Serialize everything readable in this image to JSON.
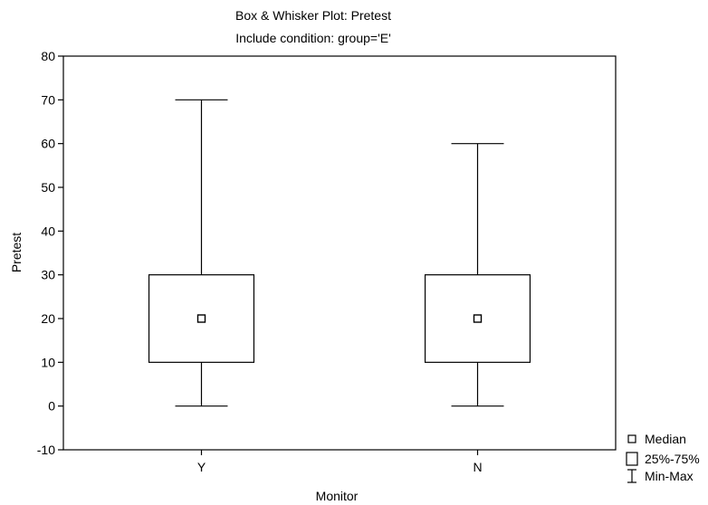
{
  "chart_data": {
    "type": "box",
    "title": "Box & Whisker Plot:  Pretest",
    "subtitle": "Include condition: group='E'",
    "xlabel": "Monitor",
    "ylabel": "Pretest",
    "ylim": [
      -10,
      80
    ],
    "y_ticks": [
      "80",
      "70",
      "60",
      "50",
      "40",
      "30",
      "20",
      "10",
      "0",
      "-10"
    ],
    "categories": [
      "Y",
      "N"
    ],
    "boxes": [
      {
        "category": "Y",
        "min": 0,
        "q1": 10,
        "median": 20,
        "q3": 30,
        "max": 70
      },
      {
        "category": "N",
        "min": 0,
        "q1": 10,
        "median": 20,
        "q3": 30,
        "max": 60
      }
    ],
    "grid": false,
    "legend_position": "bottom-right",
    "legend": {
      "median": "Median",
      "box": "25%-75%",
      "whisker": "Min-Max"
    }
  }
}
